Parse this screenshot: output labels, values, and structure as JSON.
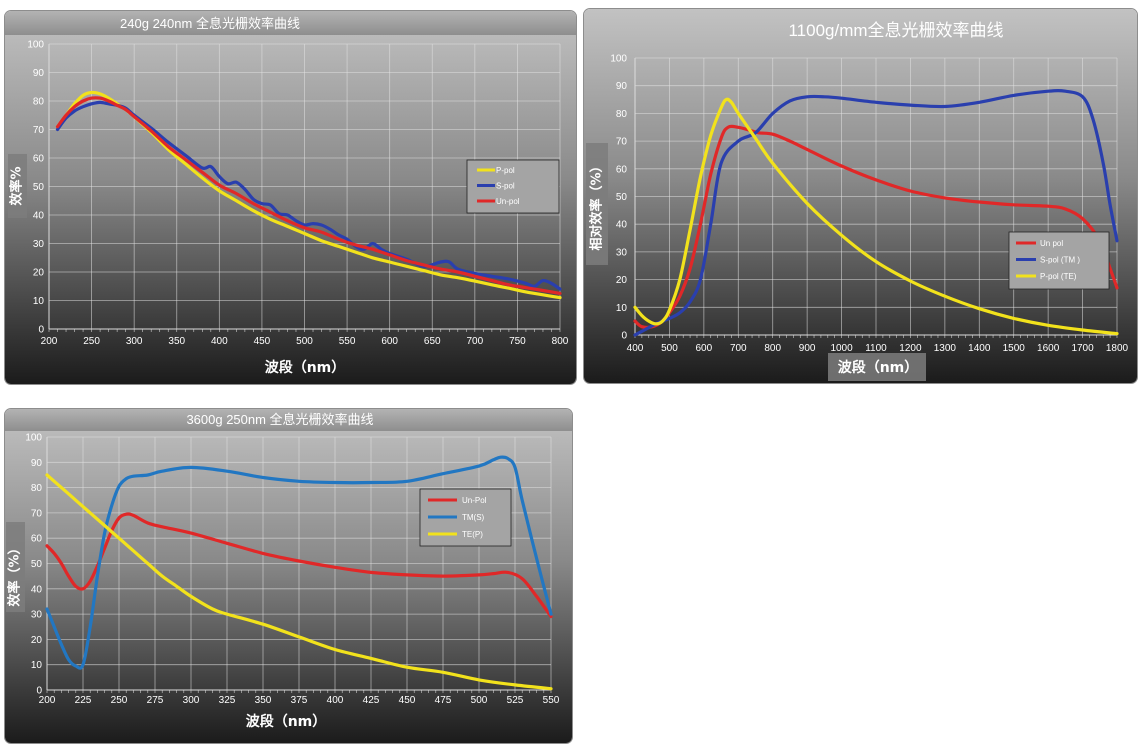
{
  "chart_data": [
    {
      "type": "line",
      "title": "240g 240nm 全息光栅效率曲线",
      "xlabel": "波段（nm）",
      "ylabel": "效率%",
      "xlim": [
        200,
        800
      ],
      "ylim": [
        0,
        100
      ],
      "xticks": [
        200,
        250,
        300,
        350,
        400,
        450,
        500,
        550,
        600,
        650,
        700,
        750,
        800
      ],
      "yticks": [
        0,
        10,
        20,
        30,
        40,
        50,
        60,
        70,
        80,
        90,
        100
      ],
      "grid": true,
      "legend_position": "right",
      "series": [
        {
          "name": "P-pol",
          "color": "#f2e21c",
          "x": [
            210,
            220,
            230,
            240,
            250,
            260,
            270,
            280,
            290,
            300,
            320,
            340,
            360,
            380,
            400,
            420,
            440,
            460,
            480,
            500,
            520,
            540,
            560,
            580,
            600,
            620,
            640,
            660,
            680,
            700,
            720,
            740,
            760,
            780,
            800
          ],
          "y": [
            71,
            75,
            79,
            82,
            83,
            82.5,
            81,
            79,
            77,
            74.5,
            69,
            63,
            58,
            53,
            48.5,
            45,
            41.5,
            38.5,
            36,
            33.5,
            31,
            29,
            27,
            25,
            23.5,
            22,
            20.5,
            19,
            18,
            16.8,
            15.5,
            14.3,
            13,
            12,
            11
          ]
        },
        {
          "name": "S-pol",
          "color": "#2a3fae",
          "x": [
            210,
            220,
            230,
            240,
            250,
            260,
            270,
            280,
            290,
            300,
            320,
            340,
            360,
            380,
            390,
            400,
            410,
            420,
            430,
            440,
            450,
            460,
            470,
            480,
            490,
            500,
            510,
            520,
            530,
            540,
            550,
            560,
            570,
            580,
            590,
            600,
            620,
            640,
            660,
            670,
            680,
            700,
            720,
            740,
            760,
            770,
            780,
            790,
            800
          ],
          "y": [
            70,
            74,
            76.5,
            78,
            79,
            79.5,
            79,
            78.5,
            77.5,
            75,
            70.5,
            65.5,
            61,
            56.5,
            57,
            53.5,
            51,
            51.5,
            49,
            45.5,
            44,
            43.5,
            40.5,
            40,
            38,
            36.5,
            37,
            36.5,
            35,
            33,
            31.5,
            29,
            28,
            30,
            28,
            26.5,
            24.5,
            22,
            23.5,
            23.5,
            21,
            19.5,
            18.5,
            17.5,
            16,
            15,
            17,
            16,
            14
          ]
        },
        {
          "name": "Un-pol",
          "color": "#e02828",
          "x": [
            210,
            220,
            230,
            240,
            250,
            260,
            270,
            280,
            290,
            300,
            320,
            340,
            360,
            380,
            400,
            420,
            440,
            460,
            480,
            500,
            520,
            540,
            560,
            580,
            600,
            620,
            640,
            660,
            680,
            700,
            720,
            740,
            760,
            780,
            800
          ],
          "y": [
            71,
            75,
            78,
            80,
            81,
            81,
            80,
            78.5,
            77,
            74.5,
            69.5,
            64,
            59.5,
            55,
            50.5,
            47.5,
            44,
            41,
            38,
            35.5,
            34,
            31.5,
            29.5,
            28,
            26,
            24,
            22.5,
            21,
            20,
            18.5,
            17,
            15.5,
            14.5,
            13.5,
            12.5
          ]
        }
      ]
    },
    {
      "type": "line",
      "title": "1100g/mm全息光栅效率曲线",
      "xlabel": "波段（nm）",
      "ylabel": "相对效率（%）",
      "xlim": [
        400,
        1800
      ],
      "ylim": [
        0,
        100
      ],
      "xticks": [
        400,
        500,
        600,
        700,
        800,
        900,
        1000,
        1100,
        1200,
        1300,
        1400,
        1500,
        1600,
        1700,
        1800
      ],
      "yticks": [
        0,
        10,
        20,
        30,
        40,
        50,
        60,
        70,
        80,
        90,
        100
      ],
      "grid": true,
      "legend_position": "bottom-right",
      "series": [
        {
          "name": "Un pol",
          "color": "#e02828",
          "x": [
            400,
            420,
            450,
            480,
            500,
            530,
            560,
            590,
            620,
            650,
            670,
            700,
            730,
            760,
            800,
            850,
            900,
            1000,
            1100,
            1200,
            1300,
            1400,
            1500,
            1600,
            1650,
            1700,
            1750,
            1780,
            1800
          ],
          "y": [
            5,
            3,
            3,
            5,
            8,
            14,
            24,
            40,
            58,
            71,
            75,
            75,
            74,
            73,
            72.5,
            70,
            67,
            61,
            56,
            52,
            49.5,
            48,
            47,
            46.5,
            45.5,
            42,
            34,
            24,
            17
          ]
        },
        {
          "name": "S-pol (TM )",
          "color": "#2a3fae",
          "x": [
            400,
            430,
            460,
            500,
            530,
            560,
            590,
            620,
            650,
            700,
            750,
            800,
            850,
            900,
            950,
            1000,
            1100,
            1200,
            1300,
            1400,
            1500,
            1600,
            1650,
            1700,
            1730,
            1760,
            1780,
            1800
          ],
          "y": [
            0,
            2,
            4,
            6,
            8,
            12,
            20,
            40,
            62,
            70,
            73,
            80,
            84.5,
            86,
            86,
            85.5,
            84,
            83,
            82.5,
            84,
            86.5,
            88,
            88,
            86,
            78,
            62,
            47,
            34
          ]
        },
        {
          "name": "P-pol (TE)",
          "color": "#f2e21c",
          "x": [
            400,
            420,
            440,
            460,
            480,
            500,
            530,
            560,
            590,
            620,
            650,
            665,
            680,
            700,
            750,
            800,
            900,
            1000,
            1100,
            1200,
            1300,
            1400,
            1500,
            1600,
            1700,
            1800
          ],
          "y": [
            10,
            7,
            5,
            4,
            5,
            9,
            20,
            38,
            57,
            72,
            82,
            85,
            84,
            80,
            71,
            62,
            47.5,
            36,
            26.5,
            19.5,
            14,
            9.5,
            6,
            3.5,
            1.8,
            0.5
          ]
        }
      ]
    },
    {
      "type": "line",
      "title": "3600g 250nm 全息光栅效率曲线",
      "xlabel": "波段（nm）",
      "ylabel": "效率（%）",
      "xlim": [
        200,
        550
      ],
      "ylim": [
        0,
        100
      ],
      "xticks": [
        200,
        225,
        250,
        275,
        300,
        325,
        350,
        375,
        400,
        425,
        450,
        475,
        500,
        525,
        550
      ],
      "yticks": [
        0,
        10,
        20,
        30,
        40,
        50,
        60,
        70,
        80,
        90,
        100
      ],
      "grid": true,
      "legend_position": "top-right",
      "series": [
        {
          "name": "Un-Pol",
          "color": "#e02828",
          "x": [
            200,
            205,
            210,
            215,
            220,
            225,
            230,
            235,
            240,
            245,
            250,
            255,
            260,
            270,
            280,
            300,
            325,
            350,
            375,
            400,
            425,
            450,
            475,
            500,
            510,
            520,
            530,
            540,
            550
          ],
          "y": [
            57,
            54,
            50,
            45,
            41,
            40,
            43,
            49,
            56,
            63,
            68,
            69.5,
            69,
            66,
            64.5,
            62,
            58,
            54,
            51,
            48.5,
            46.5,
            45.5,
            45,
            45.5,
            46,
            46.5,
            44,
            37,
            29
          ]
        },
        {
          "name": "TM(S)",
          "color": "#2277c2",
          "x": [
            200,
            205,
            210,
            215,
            220,
            225,
            230,
            235,
            240,
            245,
            250,
            255,
            260,
            270,
            280,
            300,
            325,
            350,
            375,
            400,
            425,
            450,
            475,
            500,
            510,
            515,
            520,
            525,
            530,
            540,
            550
          ],
          "y": [
            32,
            25,
            18,
            12,
            9.5,
            10,
            25,
            45,
            62,
            73,
            80.5,
            83.5,
            84.5,
            85,
            86.5,
            88,
            86.5,
            84,
            82.5,
            82,
            82,
            82.5,
            85.5,
            88.5,
            91,
            92,
            91.5,
            88,
            75,
            52,
            30
          ]
        },
        {
          "name": "TE(P)",
          "color": "#f2e21c",
          "x": [
            200,
            210,
            220,
            230,
            240,
            250,
            260,
            270,
            280,
            290,
            300,
            315,
            325,
            350,
            375,
            400,
            425,
            450,
            475,
            500,
            525,
            550
          ],
          "y": [
            85,
            80,
            75,
            70,
            65,
            60,
            55,
            50,
            45,
            41,
            37,
            32,
            30,
            26,
            21,
            16,
            12.5,
            9,
            7,
            4,
            2,
            0.5
          ]
        }
      ]
    }
  ]
}
